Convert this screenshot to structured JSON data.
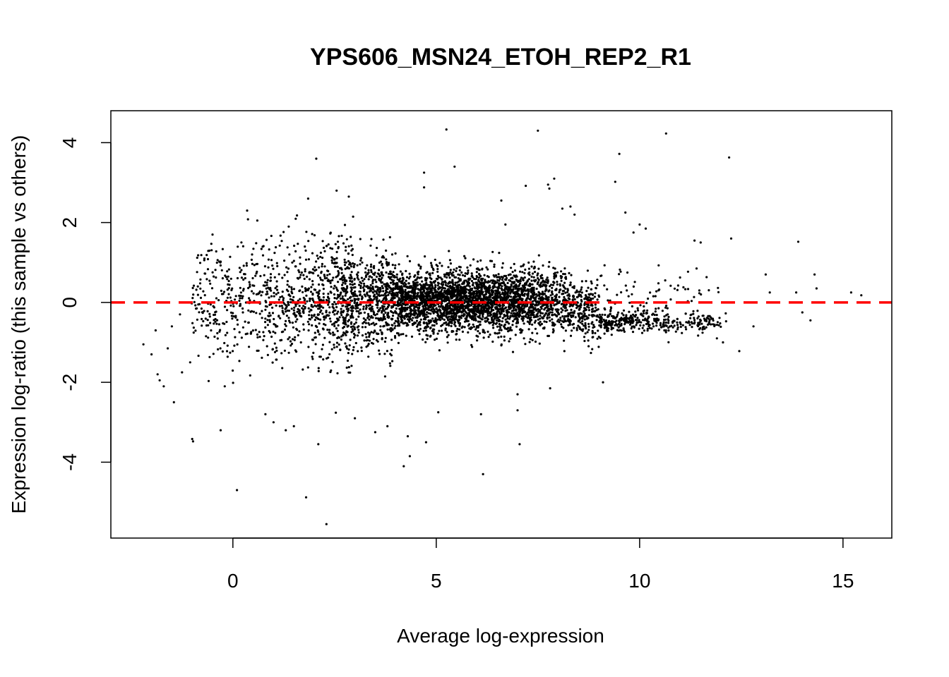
{
  "chart_data": {
    "type": "scatter",
    "title": "YPS606_MSN24_ETOH_REP2_R1",
    "xlabel": "Average log-expression",
    "ylabel": "Expression log-ratio (this sample vs others)",
    "xlim": [
      -3.0,
      16.2
    ],
    "ylim": [
      -5.9,
      4.8
    ],
    "x_ticks": [
      0,
      5,
      10,
      15
    ],
    "y_ticks": [
      -4,
      -2,
      0,
      2,
      4
    ],
    "grid": false,
    "legend": "none",
    "point_color": "#000000",
    "reference_line": {
      "y": 0,
      "style": "dashed",
      "color": "#ff0000"
    },
    "highlighted_points": [
      {
        "x": -2.2,
        "y": -1.05
      },
      {
        "x": -2.0,
        "y": -1.3
      },
      {
        "x": -1.9,
        "y": -0.7
      },
      {
        "x": -1.85,
        "y": -1.8
      },
      {
        "x": -1.8,
        "y": -1.95
      },
      {
        "x": -1.7,
        "y": -2.1
      },
      {
        "x": -1.6,
        "y": -1.15
      },
      {
        "x": -1.5,
        "y": -0.6
      },
      {
        "x": -1.45,
        "y": -2.5
      },
      {
        "x": -1.3,
        "y": -0.3
      },
      {
        "x": -1.25,
        "y": -1.75
      },
      {
        "x": -1.05,
        "y": -1.5
      },
      {
        "x": -1.0,
        "y": -3.42
      },
      {
        "x": -0.98,
        "y": -3.48
      },
      {
        "x": -0.85,
        "y": -0.05
      },
      {
        "x": -0.7,
        "y": 1.1
      },
      {
        "x": -0.5,
        "y": 1.7
      },
      {
        "x": -0.3,
        "y": -3.2
      },
      {
        "x": -0.2,
        "y": -2.1
      },
      {
        "x": 0.1,
        "y": -4.7
      },
      {
        "x": 0.35,
        "y": 2.3
      },
      {
        "x": 0.6,
        "y": 2.05
      },
      {
        "x": 0.8,
        "y": -2.8
      },
      {
        "x": 1.0,
        "y": -3.0
      },
      {
        "x": 1.3,
        "y": -3.2
      },
      {
        "x": 1.5,
        "y": -3.1
      },
      {
        "x": 1.8,
        "y": -4.88
      },
      {
        "x": 1.85,
        "y": 2.6
      },
      {
        "x": 2.05,
        "y": 3.6
      },
      {
        "x": 2.1,
        "y": -3.55
      },
      {
        "x": 2.3,
        "y": -5.55
      },
      {
        "x": 2.55,
        "y": 2.8
      },
      {
        "x": 2.85,
        "y": 2.65
      },
      {
        "x": 3.0,
        "y": -2.9
      },
      {
        "x": 3.5,
        "y": -3.25
      },
      {
        "x": 3.8,
        "y": -3.1
      },
      {
        "x": 4.2,
        "y": -4.1
      },
      {
        "x": 4.3,
        "y": -3.35
      },
      {
        "x": 4.35,
        "y": -3.85
      },
      {
        "x": 4.7,
        "y": 3.25
      },
      {
        "x": 4.7,
        "y": 2.88
      },
      {
        "x": 4.75,
        "y": -3.5
      },
      {
        "x": 5.25,
        "y": 4.33
      },
      {
        "x": 5.45,
        "y": 3.4
      },
      {
        "x": 5.05,
        "y": -2.75
      },
      {
        "x": 6.15,
        "y": -4.3
      },
      {
        "x": 6.1,
        "y": -2.8
      },
      {
        "x": 6.6,
        "y": 2.55
      },
      {
        "x": 6.7,
        "y": 1.95
      },
      {
        "x": 7.0,
        "y": -2.7
      },
      {
        "x": 7.0,
        "y": -2.3
      },
      {
        "x": 7.05,
        "y": -3.55
      },
      {
        "x": 7.2,
        "y": 2.92
      },
      {
        "x": 7.5,
        "y": 4.3
      },
      {
        "x": 7.75,
        "y": 2.95
      },
      {
        "x": 7.78,
        "y": 2.85
      },
      {
        "x": 7.9,
        "y": 3.1
      },
      {
        "x": 7.8,
        "y": -2.15
      },
      {
        "x": 8.1,
        "y": 2.35
      },
      {
        "x": 8.3,
        "y": 2.4
      },
      {
        "x": 8.4,
        "y": 2.2
      },
      {
        "x": 9.1,
        "y": -2.0
      },
      {
        "x": 9.4,
        "y": 3.02
      },
      {
        "x": 9.5,
        "y": 3.72
      },
      {
        "x": 9.65,
        "y": 2.25
      },
      {
        "x": 9.85,
        "y": 1.75
      },
      {
        "x": 10.0,
        "y": 1.95
      },
      {
        "x": 10.15,
        "y": 1.85
      },
      {
        "x": 10.65,
        "y": 4.23
      },
      {
        "x": 11.35,
        "y": 1.55
      },
      {
        "x": 11.5,
        "y": 1.5
      },
      {
        "x": 11.4,
        "y": 0.85
      },
      {
        "x": 11.75,
        "y": -0.55
      },
      {
        "x": 11.9,
        "y": -0.9
      },
      {
        "x": 12.05,
        "y": -1.0
      },
      {
        "x": 12.2,
        "y": 3.63
      },
      {
        "x": 12.25,
        "y": 1.6
      },
      {
        "x": 12.45,
        "y": -1.22
      },
      {
        "x": 12.8,
        "y": -0.6
      },
      {
        "x": 13.1,
        "y": 0.7
      },
      {
        "x": 13.2,
        "y": 0.25
      },
      {
        "x": 13.9,
        "y": 1.52
      },
      {
        "x": 13.85,
        "y": 0.25
      },
      {
        "x": 14.0,
        "y": -0.25
      },
      {
        "x": 14.2,
        "y": -0.45
      },
      {
        "x": 14.3,
        "y": 0.7
      },
      {
        "x": 14.35,
        "y": 0.35
      },
      {
        "x": 15.2,
        "y": 0.25
      },
      {
        "x": 15.45,
        "y": 0.18
      }
    ]
  }
}
